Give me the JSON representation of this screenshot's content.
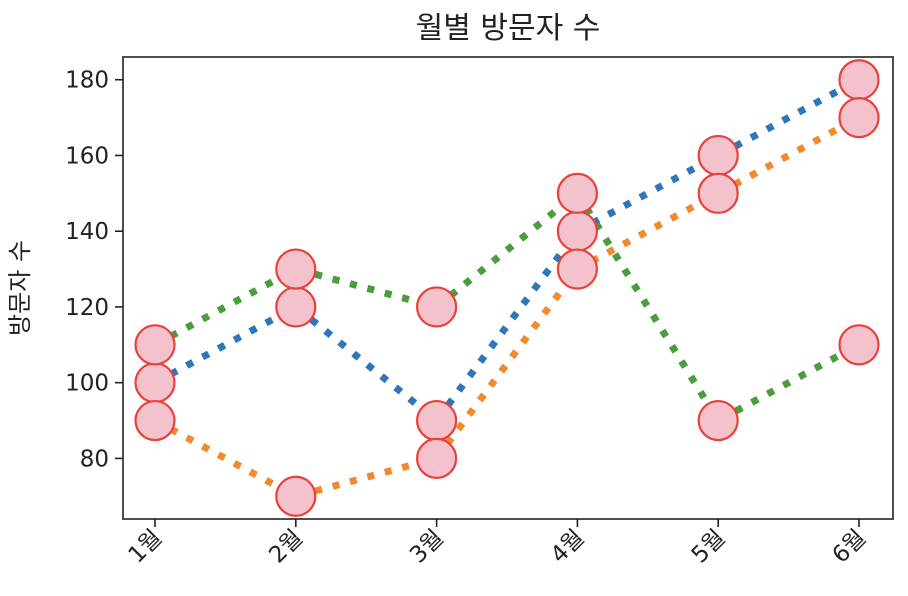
{
  "chart_data": {
    "type": "line",
    "title": "월별 방문자 수",
    "xlabel": "",
    "ylabel": "방문자 수",
    "categories": [
      "1월",
      "2월",
      "3월",
      "4월",
      "5월",
      "6월"
    ],
    "ylim": [
      64,
      186
    ],
    "yticks": [
      80,
      100,
      120,
      140,
      160,
      180
    ],
    "grid": false,
    "legend": false,
    "line_style": "dotted",
    "marker_fill": "#f4c2cc",
    "marker_edge": "#e8413a",
    "series": [
      {
        "color": "#2f76b8",
        "values": [
          100,
          120,
          90,
          140,
          160,
          180
        ]
      },
      {
        "color": "#f08a2c",
        "values": [
          90,
          70,
          80,
          130,
          150,
          170
        ]
      },
      {
        "color": "#4a9c3c",
        "values": [
          110,
          130,
          120,
          150,
          90,
          110
        ]
      }
    ]
  }
}
